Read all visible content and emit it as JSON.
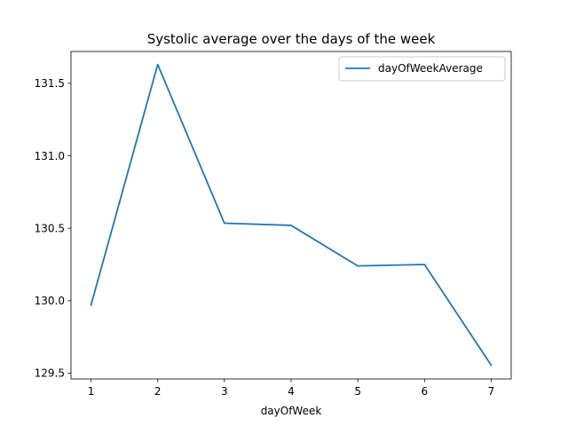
{
  "chart_data": {
    "type": "line",
    "title": "Systolic average over the days of the week",
    "xlabel": "dayOfWeek",
    "ylabel": "",
    "x": [
      1,
      2,
      3,
      4,
      5,
      6,
      7
    ],
    "xticks": [
      "1",
      "2",
      "3",
      "4",
      "5",
      "6",
      "7"
    ],
    "yticks": [
      "129.5",
      "130.0",
      "130.5",
      "131.0",
      "131.5"
    ],
    "ytick_values": [
      129.5,
      130.0,
      130.5,
      131.0,
      131.5
    ],
    "xlim": [
      0.7,
      7.3
    ],
    "ylim": [
      129.46,
      131.72
    ],
    "series": [
      {
        "name": "dayOfWeekAverage",
        "color": "#1f77b4",
        "values": [
          129.97,
          131.63,
          130.535,
          130.52,
          130.24,
          130.25,
          129.555
        ]
      }
    ],
    "legend": "top-right",
    "grid": false
  }
}
